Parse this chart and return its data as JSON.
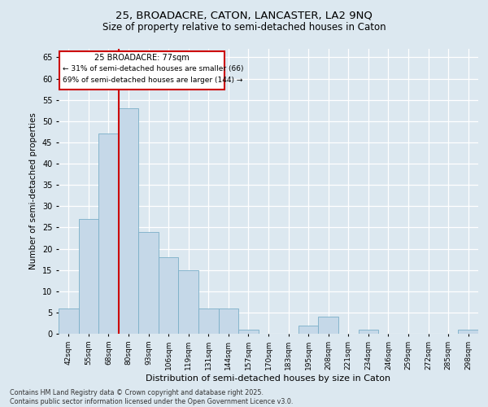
{
  "title_line1": "25, BROADACRE, CATON, LANCASTER, LA2 9NQ",
  "title_line2": "Size of property relative to semi-detached houses in Caton",
  "xlabel": "Distribution of semi-detached houses by size in Caton",
  "ylabel": "Number of semi-detached properties",
  "categories": [
    "42sqm",
    "55sqm",
    "68sqm",
    "80sqm",
    "93sqm",
    "106sqm",
    "119sqm",
    "131sqm",
    "144sqm",
    "157sqm",
    "170sqm",
    "183sqm",
    "195sqm",
    "208sqm",
    "221sqm",
    "234sqm",
    "246sqm",
    "259sqm",
    "272sqm",
    "285sqm",
    "298sqm"
  ],
  "values": [
    6,
    27,
    47,
    53,
    24,
    18,
    15,
    6,
    6,
    1,
    0,
    0,
    2,
    4,
    0,
    1,
    0,
    0,
    0,
    0,
    1
  ],
  "bar_color": "#c5d8e8",
  "bar_edge_color": "#7aafc8",
  "property_size_label": "25 BROADACRE: 77sqm",
  "pct_smaller": 31,
  "count_smaller": 66,
  "pct_larger": 69,
  "count_larger": 144,
  "vline_color": "#cc0000",
  "annotation_box_color": "#cc0000",
  "background_color": "#dce8f0",
  "grid_color": "#ffffff",
  "ylim": [
    0,
    67
  ],
  "yticks": [
    0,
    5,
    10,
    15,
    20,
    25,
    30,
    35,
    40,
    45,
    50,
    55,
    60,
    65
  ],
  "footnote": "Contains HM Land Registry data © Crown copyright and database right 2025.\nContains public sector information licensed under the Open Government Licence v3.0.",
  "vline_x": 2.5
}
